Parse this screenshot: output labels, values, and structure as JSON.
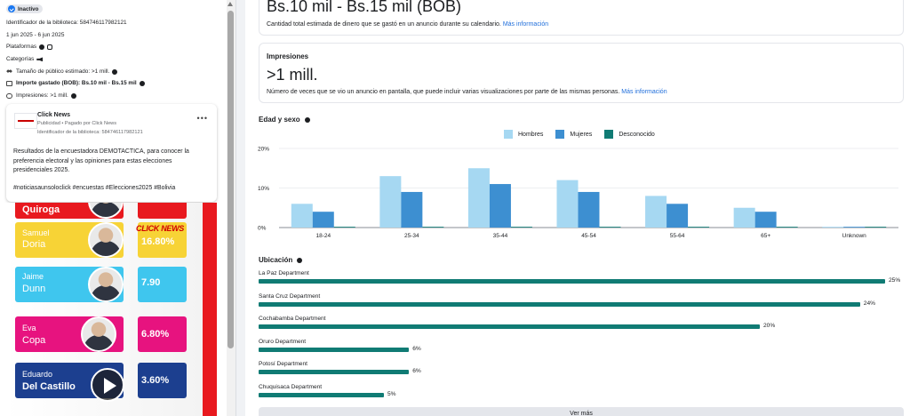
{
  "left": {
    "status": "Inactivo",
    "library_id": "Identificador de la biblioteca: 584746117982121",
    "date_range": "1 jun 2025 - 6 jun 2025",
    "platforms_label": "Plataformas",
    "categories_label": "Categorías",
    "audience_size": "Tamaño de público estimado: >1 mill.",
    "amount_spent": "Importe gastado (BOB): Bs.10 mil - Bs.15 mil",
    "impressions": "Impresiones: >1 mill.",
    "icons": [
      "check-icon",
      "facebook-icon",
      "instagram-icon",
      "megaphone-icon",
      "people-icon",
      "money-icon",
      "eye-icon",
      "info-icon"
    ]
  },
  "ad": {
    "page_name": "Click News",
    "sponsor": "Publicidad • Pagado por Click News",
    "library_id": "Identificador de la biblioteca: 584746117982121",
    "body": "Resultados de la encuestadora DEMOTACTICA, para conocer la preferencia electoral y las opiniones para estas elecciones presidenciales 2025.",
    "hashtags": "#noticiasaunsoloclick #encuestas #Elecciones2025 #Bolivia",
    "menu": "•••"
  },
  "creative": {
    "candidates": [
      {
        "first": "",
        "last": "Quiroga",
        "pct": "",
        "card_color": "#e8191f",
        "pct_color": "#e8191f"
      },
      {
        "first": "Samuel",
        "last": "Doria",
        "pct": "16.80%",
        "card_color": "#f7d336",
        "pct_color": "#f7d336"
      },
      {
        "first": "Jaime",
        "last": "Dunn",
        "pct": "7.90",
        "card_color": "#3fc6ee",
        "pct_color": "#3fc6ee"
      },
      {
        "first": "Eva",
        "last": "Copa",
        "pct": "6.80%",
        "card_color": "#e7137f",
        "pct_color": "#e7137f"
      },
      {
        "first": "Eduardo",
        "last": "Del Castillo",
        "pct": "3.60%",
        "card_color": "#1c3f8f",
        "pct_color": "#1c3f8f"
      }
    ],
    "badge": "CLICK NEWS"
  },
  "right": {
    "spent_value": "Bs.10 mil - Bs.15 mil (BOB)",
    "spent_desc": "Cantidad total estimada de dinero que se gastó en un anuncio durante su calendario.",
    "more_info": "Más información",
    "impressions_title": "Impresiones",
    "impressions_value": ">1 mill.",
    "impressions_desc": "Número de veces que se vio un anuncio en pantalla, que puede incluir varias visualizaciones por parte de las mismas personas.",
    "age_sex_title": "Edad y sexo",
    "location_title": "Ubicación",
    "see_more": "Ver más"
  },
  "chart_data": [
    {
      "type": "bar",
      "title": "Edad y sexo",
      "categories": [
        "18-24",
        "25-34",
        "35-44",
        "45-54",
        "55-64",
        "65+",
        "Unknown"
      ],
      "series": [
        {
          "name": "Hombres",
          "color": "#a6d8f2",
          "values": [
            6,
            13,
            15,
            12,
            8,
            5,
            0.2
          ]
        },
        {
          "name": "Mujeres",
          "color": "#3d8fd1",
          "values": [
            4,
            9,
            11,
            9,
            6,
            4,
            0.2
          ]
        },
        {
          "name": "Desconocido",
          "color": "#107b74",
          "values": [
            0.2,
            0.2,
            0.2,
            0.2,
            0.2,
            0.2,
            0.2
          ]
        }
      ],
      "ylim": [
        0,
        20
      ],
      "y_ticks": [
        "0%",
        "10%",
        "20%"
      ],
      "legend": "top-center",
      "grid": true
    },
    {
      "type": "bar",
      "title": "Ubicación",
      "orientation": "horizontal",
      "categories": [
        "La Paz Department",
        "Santa Cruz Department",
        "Cochabamba Department",
        "Oruro Department",
        "Potosí Department",
        "Chuquisaca Department"
      ],
      "values": [
        25,
        24,
        20,
        6,
        6,
        5
      ],
      "labels": [
        "25%",
        "24%",
        "20%",
        "6%",
        "6%",
        "5%"
      ],
      "color": "#107b74"
    }
  ]
}
